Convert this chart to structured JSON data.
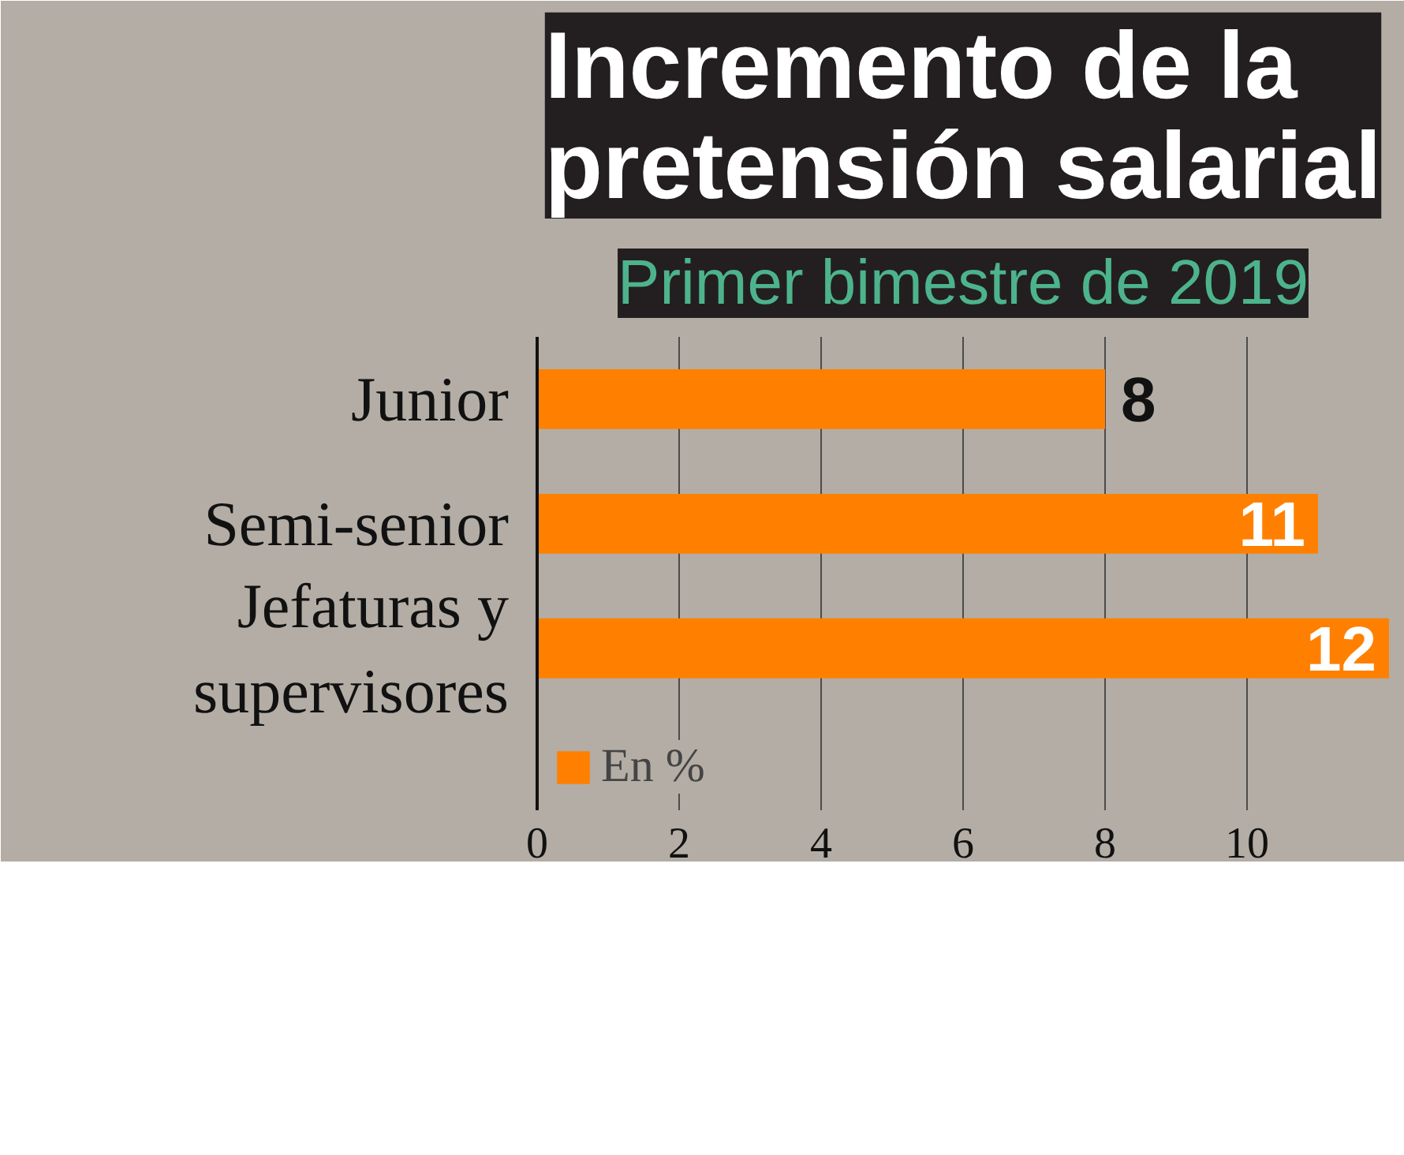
{
  "chart_data": {
    "type": "bar",
    "orientation": "horizontal",
    "title": "Incremento de la pretensión salarial",
    "subtitle": "Primer bimestre de 2019",
    "categories": [
      "Junior",
      "Semi-senior",
      "Jefaturas y supervisores"
    ],
    "series": [
      {
        "name": "En %",
        "color": "#ff8000",
        "values": [
          8,
          11,
          12
        ]
      }
    ],
    "xlim": [
      0,
      12
    ],
    "xticks": [
      0,
      2,
      4,
      6,
      8,
      10
    ],
    "grid": "x",
    "data_labels": true,
    "legend": "bottom left"
  }
}
